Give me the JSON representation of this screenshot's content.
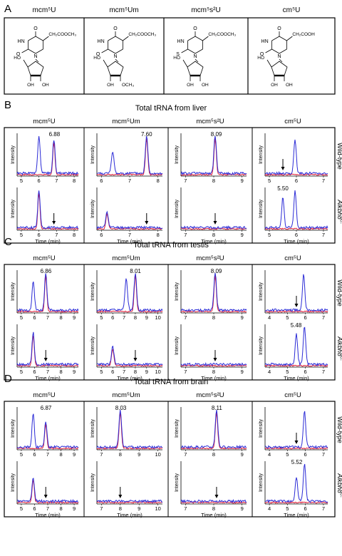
{
  "panel_a": {
    "letter": "A",
    "headers": [
      "mcm⁵U",
      "mcm⁵Um",
      "mcm⁵s²U",
      "cm⁵U"
    ],
    "structures": [
      {
        "side_chain": "CH₂COOCH₃",
        "ring_sub": "O",
        "hetero_top": "O",
        "sugar_2": "OH",
        "sugar_3": "OH",
        "sugar_5": "HO"
      },
      {
        "side_chain": "CH₂COOCH₃",
        "ring_sub": "O",
        "hetero_top": "O",
        "sugar_2": "OCH₃",
        "sugar_3": "OH",
        "sugar_5": "HO"
      },
      {
        "side_chain": "CH₂COOCH₃",
        "ring_sub": "S",
        "hetero_top": "O",
        "sugar_2": "OH",
        "sugar_3": "OH",
        "sugar_5": "HO"
      },
      {
        "side_chain": "CH₂COOH",
        "ring_sub": "O",
        "hetero_top": "O",
        "sugar_2": "OH",
        "sugar_3": "OH",
        "sugar_5": "HO"
      }
    ],
    "atom_labels": {
      "N": "N",
      "HN": "HN"
    }
  },
  "row_labels": {
    "wild_type": "Wild-type",
    "knockout": "Alkbh8",
    "knockout_sup": "-/-"
  },
  "axis_text": {
    "ylabel": "Intensity",
    "xlabel": "Time (min)"
  },
  "panels": [
    {
      "letter": "B",
      "title": "Total tRNA from liver",
      "headers": [
        "mcm⁵U",
        "mcm⁵Um",
        "mcm⁵s²U",
        "cm⁵U"
      ],
      "columns": [
        {
          "ticks": [
            "5",
            "6",
            "7",
            "8"
          ],
          "wt_label": "6.88",
          "ko_label": "",
          "wt_arrow": false,
          "ko_arrow": true,
          "peaks_wt": [
            [
              6.0,
              0.95
            ],
            [
              6.85,
              0.85
            ]
          ],
          "peaks_ko": [
            [
              6.0,
              0.95
            ]
          ],
          "red_wt": true
        },
        {
          "ticks": [
            "6",
            "7",
            "8"
          ],
          "wt_label": "7.60",
          "ko_label": "",
          "wt_arrow": false,
          "ko_arrow": true,
          "peaks_wt": [
            [
              6.4,
              0.55
            ],
            [
              7.6,
              0.95
            ]
          ],
          "peaks_ko": [
            [
              6.2,
              0.4
            ]
          ],
          "red_wt": true
        },
        {
          "ticks": [
            "7",
            "8",
            "9"
          ],
          "wt_label": "8.09",
          "ko_label": "",
          "wt_arrow": false,
          "ko_arrow": true,
          "peaks_wt": [
            [
              8.05,
              0.95
            ]
          ],
          "peaks_ko": [],
          "red_wt": true
        },
        {
          "ticks": [
            "5",
            "6",
            "7"
          ],
          "wt_label": "",
          "ko_label": "5.50",
          "wt_arrow": true,
          "ko_arrow": false,
          "peaks_wt": [
            [
              5.95,
              0.85
            ]
          ],
          "peaks_ko": [
            [
              5.5,
              0.75
            ],
            [
              5.95,
              0.95
            ]
          ],
          "red_wt": false
        }
      ]
    },
    {
      "letter": "C",
      "title": "Total tRNA from testis",
      "headers": [
        "mcm⁵U",
        "mcm⁵Um",
        "mcm⁵s²U",
        "cm⁵U"
      ],
      "columns": [
        {
          "ticks": [
            "5",
            "6",
            "7",
            "8",
            "9"
          ],
          "wt_label": "6.86",
          "ko_label": "",
          "wt_arrow": false,
          "ko_arrow": true,
          "peaks_wt": [
            [
              5.9,
              0.75
            ],
            [
              6.85,
              0.95
            ]
          ],
          "peaks_ko": [
            [
              5.9,
              0.8
            ]
          ],
          "red_wt": true
        },
        {
          "ticks": [
            "5",
            "6",
            "7",
            "8",
            "9",
            "10"
          ],
          "wt_label": "8.01",
          "ko_label": "",
          "wt_arrow": false,
          "ko_arrow": true,
          "peaks_wt": [
            [
              7.2,
              0.8
            ],
            [
              8.0,
              0.95
            ]
          ],
          "peaks_ko": [
            [
              6.0,
              0.45
            ]
          ],
          "red_wt": true
        },
        {
          "ticks": [
            "7",
            "8",
            "9"
          ],
          "wt_label": "8.09",
          "ko_label": "",
          "wt_arrow": false,
          "ko_arrow": true,
          "peaks_wt": [
            [
              8.05,
              0.95
            ]
          ],
          "peaks_ko": [],
          "red_wt": true
        },
        {
          "ticks": [
            "4",
            "5",
            "6",
            "7"
          ],
          "wt_label": "",
          "ko_label": "5.48",
          "wt_arrow": true,
          "ko_arrow": false,
          "peaks_wt": [
            [
              5.9,
              0.9
            ]
          ],
          "peaks_ko": [
            [
              5.5,
              0.75
            ],
            [
              5.95,
              0.95
            ]
          ],
          "red_wt": false
        }
      ]
    },
    {
      "letter": "D",
      "title": "Total tRNA from brain",
      "headers": [
        "mcm⁵U",
        "mcm⁵Um",
        "mcm⁵s²U",
        "cm⁵U"
      ],
      "columns": [
        {
          "ticks": [
            "5",
            "6",
            "7",
            "8",
            "9"
          ],
          "wt_label": "6.87",
          "ko_label": "",
          "wt_arrow": false,
          "ko_arrow": true,
          "peaks_wt": [
            [
              5.9,
              0.85
            ],
            [
              6.85,
              0.65
            ]
          ],
          "peaks_ko": [
            [
              5.9,
              0.6
            ]
          ],
          "red_wt": true
        },
        {
          "ticks": [
            "7",
            "8",
            "9",
            "10"
          ],
          "wt_label": "8.03",
          "ko_label": "",
          "wt_arrow": false,
          "ko_arrow": true,
          "peaks_wt": [
            [
              8.0,
              0.95
            ]
          ],
          "peaks_ko": [],
          "red_wt": true
        },
        {
          "ticks": [
            "7",
            "8",
            "9"
          ],
          "wt_label": "8.11",
          "ko_label": "",
          "wt_arrow": false,
          "ko_arrow": true,
          "peaks_wt": [
            [
              8.1,
              0.95
            ]
          ],
          "peaks_ko": [],
          "red_wt": true
        },
        {
          "ticks": [
            "4",
            "5",
            "6",
            "7"
          ],
          "wt_label": "",
          "ko_label": "5.52",
          "wt_arrow": true,
          "ko_arrow": false,
          "peaks_wt": [
            [
              5.95,
              0.9
            ]
          ],
          "peaks_ko": [
            [
              5.5,
              0.6
            ],
            [
              5.95,
              0.95
            ]
          ],
          "red_wt": false
        }
      ]
    }
  ],
  "colors": {
    "trace_blue": "#2b2bd6",
    "trace_red": "#e0203a",
    "frame": "#000000"
  }
}
